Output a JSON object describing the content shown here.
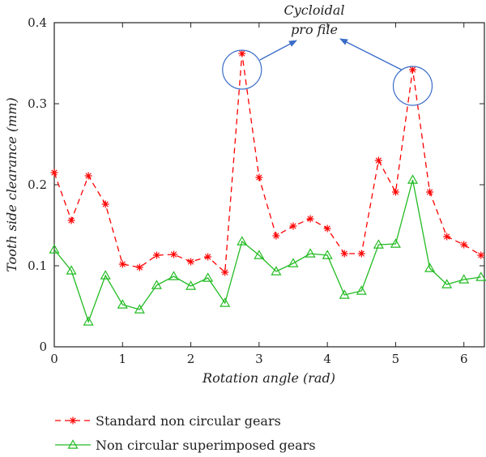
{
  "chart_data": {
    "type": "line",
    "title": "",
    "xlabel": "Rotation angle (rad)",
    "ylabel": "Tooth side clearance (mm)",
    "xlim": [
      0,
      6.3
    ],
    "ylim": [
      0,
      0.4
    ],
    "xticks": [
      0,
      1,
      2,
      3,
      4,
      5,
      6
    ],
    "yticks": [
      0,
      0.1,
      0.2,
      0.3,
      0.4
    ],
    "grid": false,
    "legend_placement": "bottom",
    "series": [
      {
        "name": "Standard non circular gears",
        "color": "#ff0000",
        "style": "dashed",
        "marker": "asterisk",
        "x": [
          0,
          0.25,
          0.5,
          0.75,
          1.0,
          1.25,
          1.5,
          1.75,
          2.0,
          2.25,
          2.5,
          2.75,
          3.0,
          3.25,
          3.5,
          3.75,
          4.0,
          4.25,
          4.5,
          4.75,
          5.0,
          5.25,
          5.5,
          5.75,
          6.0,
          6.25
        ],
        "y": [
          0.215,
          0.156,
          0.211,
          0.176,
          0.102,
          0.098,
          0.113,
          0.114,
          0.105,
          0.111,
          0.092,
          0.362,
          0.209,
          0.137,
          0.149,
          0.158,
          0.146,
          0.115,
          0.115,
          0.23,
          0.191,
          0.342,
          0.191,
          0.136,
          0.126,
          0.113
        ]
      },
      {
        "name": "Non circular superimposed gears",
        "color": "#22bb22",
        "style": "solid",
        "marker": "triangle",
        "x": [
          0,
          0.25,
          0.5,
          0.75,
          1.0,
          1.25,
          1.5,
          1.75,
          2.0,
          2.25,
          2.5,
          2.75,
          3.0,
          3.25,
          3.5,
          3.75,
          4.0,
          4.25,
          4.5,
          4.75,
          5.0,
          5.25,
          5.5,
          5.75,
          6.0,
          6.25
        ],
        "y": [
          0.12,
          0.094,
          0.031,
          0.088,
          0.052,
          0.046,
          0.076,
          0.087,
          0.075,
          0.085,
          0.054,
          0.13,
          0.113,
          0.093,
          0.103,
          0.115,
          0.113,
          0.064,
          0.069,
          0.126,
          0.127,
          0.206,
          0.097,
          0.077,
          0.083,
          0.086
        ]
      }
    ],
    "annotations": [
      {
        "text_line1": "Cycloidal",
        "text_line2": "pro file",
        "points_to_x": [
          2.75,
          5.25
        ]
      }
    ]
  }
}
